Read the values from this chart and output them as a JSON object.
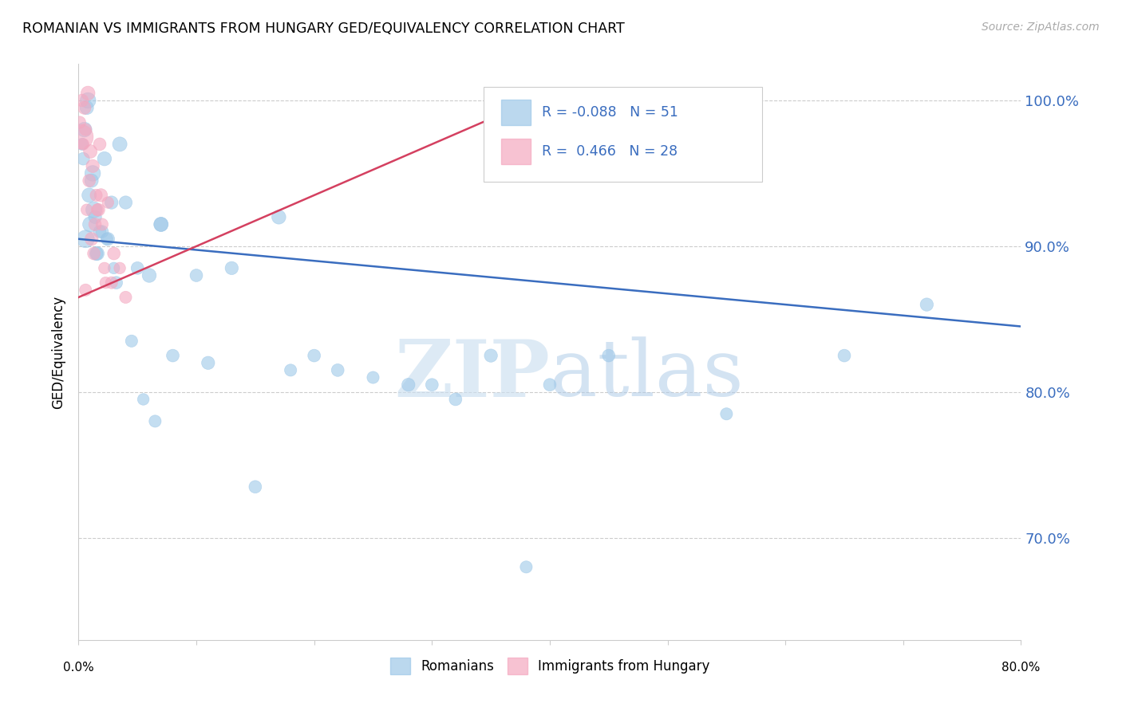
{
  "title": "ROMANIAN VS IMMIGRANTS FROM HUNGARY GED/EQUIVALENCY CORRELATION CHART",
  "source": "Source: ZipAtlas.com",
  "ylabel": "GED/Equivalency",
  "watermark_zip": "ZIP",
  "watermark_atlas": "atlas",
  "r_blue": -0.088,
  "n_blue": 51,
  "r_pink": 0.466,
  "n_pink": 28,
  "blue_color": "#9ec8e8",
  "pink_color": "#f4a8c0",
  "blue_line_color": "#3a6dbf",
  "pink_line_color": "#d44060",
  "ytick_labels": [
    "70.0%",
    "80.0%",
    "90.0%",
    "100.0%"
  ],
  "ytick_values": [
    70.0,
    80.0,
    90.0,
    100.0
  ],
  "xlim": [
    0.0,
    80.0
  ],
  "ylim": [
    63.0,
    102.5
  ],
  "blue_scatter_x": [
    0.5,
    0.7,
    0.3,
    0.8,
    0.4,
    1.2,
    0.9,
    1.1,
    1.4,
    1.8,
    0.6,
    1.0,
    1.3,
    2.2,
    2.8,
    3.5,
    1.6,
    2.0,
    2.4,
    3.0,
    4.0,
    5.0,
    6.0,
    7.0,
    10.0,
    13.0,
    17.0,
    20.0,
    7.0,
    3.2,
    4.5,
    5.5,
    6.5,
    8.0,
    11.0,
    15.0,
    18.0,
    22.0,
    28.0,
    32.0,
    38.0,
    45.0,
    55.0,
    65.0,
    72.0,
    1.5,
    2.5,
    25.0,
    30.0,
    35.0,
    40.0
  ],
  "blue_scatter_y": [
    98.0,
    99.5,
    97.0,
    100.0,
    96.0,
    95.0,
    93.5,
    94.5,
    92.0,
    91.0,
    90.5,
    91.5,
    92.5,
    96.0,
    93.0,
    97.0,
    89.5,
    91.0,
    90.5,
    88.5,
    93.0,
    88.5,
    88.0,
    91.5,
    88.0,
    88.5,
    92.0,
    82.5,
    91.5,
    87.5,
    83.5,
    79.5,
    78.0,
    82.5,
    82.0,
    73.5,
    81.5,
    81.5,
    80.5,
    79.5,
    68.0,
    82.5,
    78.5,
    82.5,
    86.0,
    89.5,
    90.5,
    81.0,
    80.5,
    82.5,
    80.5
  ],
  "blue_scatter_size": [
    180,
    150,
    120,
    200,
    130,
    200,
    170,
    150,
    140,
    130,
    250,
    190,
    210,
    160,
    140,
    170,
    150,
    130,
    120,
    110,
    140,
    130,
    160,
    170,
    130,
    140,
    160,
    130,
    160,
    130,
    120,
    110,
    120,
    130,
    140,
    130,
    120,
    130,
    140,
    130,
    120,
    130,
    120,
    130,
    140,
    150,
    140,
    120,
    130,
    140,
    130
  ],
  "pink_scatter_x": [
    0.3,
    0.5,
    0.4,
    0.8,
    0.6,
    1.0,
    1.2,
    0.9,
    1.5,
    1.8,
    0.7,
    1.1,
    1.4,
    2.0,
    2.5,
    3.0,
    0.2,
    1.6,
    2.2,
    2.8,
    1.3,
    1.9,
    0.1,
    3.5,
    4.0,
    1.7,
    2.3,
    0.6
  ],
  "pink_scatter_y": [
    100.0,
    99.5,
    97.0,
    100.5,
    98.0,
    96.5,
    95.5,
    94.5,
    93.5,
    97.0,
    92.5,
    90.5,
    91.5,
    91.5,
    93.0,
    89.5,
    97.5,
    92.5,
    88.5,
    87.5,
    89.5,
    93.5,
    98.5,
    88.5,
    86.5,
    92.5,
    87.5,
    87.0
  ],
  "pink_scatter_size": [
    130,
    140,
    110,
    160,
    120,
    150,
    140,
    130,
    120,
    130,
    110,
    140,
    130,
    120,
    110,
    130,
    500,
    120,
    110,
    120,
    130,
    140,
    120,
    110,
    120,
    130,
    110,
    120
  ],
  "blue_line_x": [
    0.0,
    80.0
  ],
  "blue_line_y": [
    90.5,
    84.5
  ],
  "pink_line_x": [
    0.0,
    40.0
  ],
  "pink_line_y": [
    86.5,
    100.5
  ]
}
